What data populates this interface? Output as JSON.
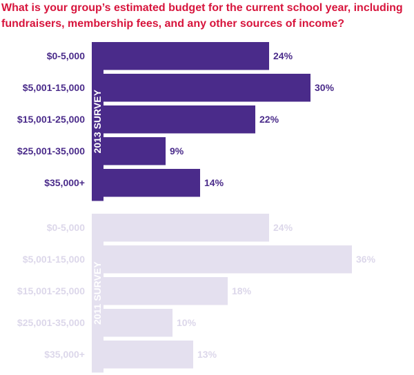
{
  "title": "What is your group’s estimated budget for the current school year, including fundraisers, membership fees, and any other sources of income?",
  "colors": {
    "title": "#d7143c",
    "survey_2013": "#4a2b8a",
    "survey_2011": "#e4e0ef",
    "text_2011": "#dcd7ea"
  },
  "chart_data": [
    {
      "type": "bar",
      "orientation": "horizontal",
      "panel_label": "2013 SURVEY",
      "categories": [
        "$0-5,000",
        "$5,001-15,000",
        "$15,001-25,000",
        "$25,001-35,000",
        "$35,000+"
      ],
      "values": [
        24,
        30,
        22,
        9,
        14
      ],
      "labels": [
        "24%",
        "30%",
        "22%",
        "9%",
        "14%"
      ]
    },
    {
      "type": "bar",
      "orientation": "horizontal",
      "panel_label": "2011 SURVEY",
      "categories": [
        "$0-5,000",
        "$5,001-15,000",
        "$15,001-25,000",
        "$25,001-35,000",
        "$35,000+"
      ],
      "values": [
        24,
        36,
        18,
        10,
        13
      ],
      "labels": [
        "24%",
        "36%",
        "18%",
        "10%",
        "13%"
      ]
    }
  ]
}
